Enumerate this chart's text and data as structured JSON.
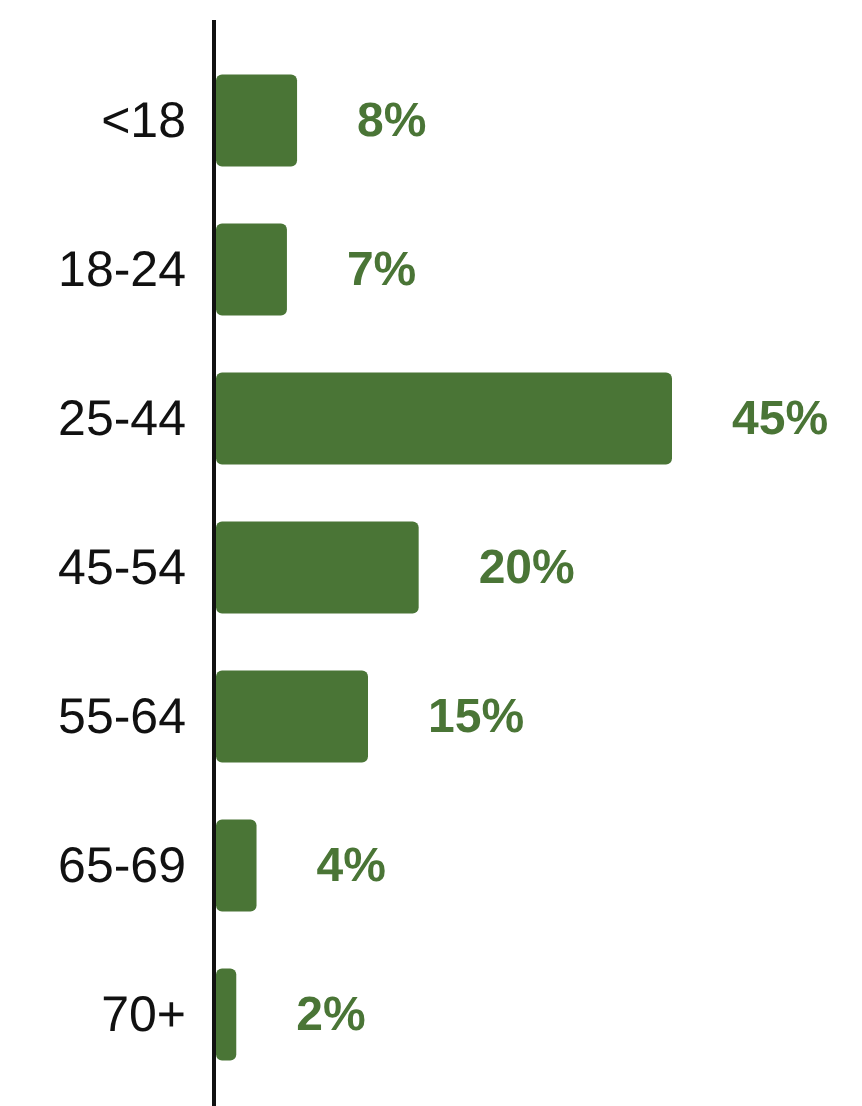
{
  "chart_data": {
    "type": "bar",
    "orientation": "horizontal",
    "categories": [
      "<18",
      "18-24",
      "25-44",
      "45-54",
      "55-64",
      "65-69",
      "70+"
    ],
    "values": [
      8,
      7,
      45,
      20,
      15,
      4,
      2
    ],
    "value_labels": [
      "8%",
      "7%",
      "45%",
      "20%",
      "15%",
      "4%",
      "2%"
    ],
    "color": "#4a7536"
  }
}
